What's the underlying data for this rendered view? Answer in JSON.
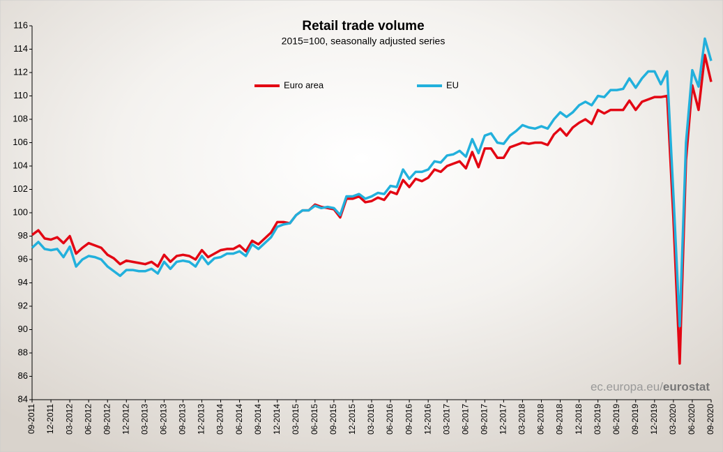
{
  "chart_data": {
    "type": "line",
    "title": "Retail trade volume",
    "subtitle": "2015=100, seasonally adjusted series",
    "source_prefix": "ec.europa.eu/",
    "source_brand": "eurostat",
    "categories": [
      "09-2011",
      null,
      null,
      "12-2011",
      null,
      null,
      "03-2012",
      null,
      null,
      "06-2012",
      null,
      null,
      "09-2012",
      null,
      null,
      "12-2012",
      null,
      null,
      "03-2013",
      null,
      null,
      "06-2013",
      null,
      null,
      "09-2013",
      null,
      null,
      "12-2013",
      null,
      null,
      "03-2014",
      null,
      null,
      "06-2014",
      null,
      null,
      "09-2014",
      null,
      null,
      "12-2014",
      null,
      null,
      "03-2015",
      null,
      null,
      "06-2015",
      null,
      null,
      "09-2015",
      null,
      null,
      "12-2015",
      null,
      null,
      "03-2016",
      null,
      null,
      "06-2016",
      null,
      null,
      "09-2016",
      null,
      null,
      "12-2016",
      null,
      null,
      "03-2017",
      null,
      null,
      "06-2017",
      null,
      null,
      "09-2017",
      null,
      null,
      "12-2017",
      null,
      null,
      "03-2018",
      null,
      null,
      "06-2018",
      null,
      null,
      "09-2018",
      null,
      null,
      "12-2018",
      null,
      null,
      "03-2019",
      null,
      null,
      "06-2019",
      null,
      null,
      "09-2019",
      null,
      null,
      "12-2019",
      null,
      null,
      "03-2020",
      null,
      null,
      "06-2020",
      null,
      null,
      "09-2020"
    ],
    "series": [
      {
        "name": "Euro area",
        "color": "#e30613",
        "values": [
          98.1,
          98.5,
          97.8,
          97.7,
          97.9,
          97.4,
          98.0,
          96.5,
          97.0,
          97.4,
          97.2,
          97.0,
          96.4,
          96.1,
          95.6,
          95.9,
          95.8,
          95.7,
          95.6,
          95.8,
          95.4,
          96.4,
          95.8,
          96.3,
          96.4,
          96.3,
          96.0,
          96.8,
          96.2,
          96.5,
          96.8,
          96.9,
          96.9,
          97.2,
          96.7,
          97.6,
          97.3,
          97.8,
          98.3,
          99.2,
          99.2,
          99.1,
          99.8,
          100.2,
          100.2,
          100.7,
          100.5,
          100.4,
          100.3,
          99.6,
          101.2,
          101.2,
          101.4,
          100.9,
          101.0,
          101.3,
          101.1,
          101.8,
          101.6,
          102.8,
          102.2,
          102.9,
          102.7,
          103.0,
          103.7,
          103.5,
          104.0,
          104.2,
          104.4,
          103.8,
          105.2,
          103.9,
          105.5,
          105.5,
          104.7,
          104.7,
          105.6,
          105.8,
          106.0,
          105.9,
          106.0,
          106.0,
          105.8,
          106.7,
          107.2,
          106.6,
          107.3,
          107.7,
          108.0,
          107.6,
          108.8,
          108.5,
          108.8,
          108.8,
          108.8,
          109.6,
          108.8,
          109.5,
          109.7,
          109.9,
          109.9,
          110.0,
          99.5,
          87.1,
          104.5,
          110.9,
          108.8,
          113.5,
          111.2
        ]
      },
      {
        "name": "EU",
        "color": "#22b0dc",
        "values": [
          97.0,
          97.5,
          96.9,
          96.8,
          96.9,
          96.2,
          97.1,
          95.4,
          96.0,
          96.3,
          96.2,
          96.0,
          95.4,
          95.0,
          94.6,
          95.1,
          95.1,
          95.0,
          95.0,
          95.2,
          94.8,
          95.8,
          95.2,
          95.8,
          95.9,
          95.8,
          95.4,
          96.3,
          95.6,
          96.1,
          96.2,
          96.5,
          96.5,
          96.7,
          96.3,
          97.3,
          96.9,
          97.4,
          97.9,
          98.8,
          99.0,
          99.1,
          99.8,
          100.2,
          100.2,
          100.6,
          100.4,
          100.5,
          100.4,
          99.8,
          101.4,
          101.4,
          101.6,
          101.2,
          101.4,
          101.7,
          101.6,
          102.3,
          102.2,
          103.7,
          102.9,
          103.5,
          103.5,
          103.7,
          104.4,
          104.3,
          104.9,
          105.0,
          105.3,
          104.8,
          106.3,
          105.1,
          106.6,
          106.8,
          106.0,
          105.9,
          106.6,
          107.0,
          107.5,
          107.3,
          107.2,
          107.4,
          107.2,
          108.0,
          108.6,
          108.2,
          108.6,
          109.2,
          109.5,
          109.2,
          110.0,
          109.9,
          110.5,
          110.5,
          110.6,
          111.5,
          110.7,
          111.5,
          112.1,
          112.1,
          111.0,
          112.1,
          101.5,
          90.3,
          106.0,
          112.2,
          110.8,
          114.9,
          113.0
        ]
      }
    ],
    "ylim": [
      84,
      116
    ],
    "yticks": [
      84,
      86,
      88,
      90,
      92,
      94,
      96,
      98,
      100,
      102,
      104,
      106,
      108,
      110,
      112,
      114,
      116
    ],
    "grid": false
  }
}
